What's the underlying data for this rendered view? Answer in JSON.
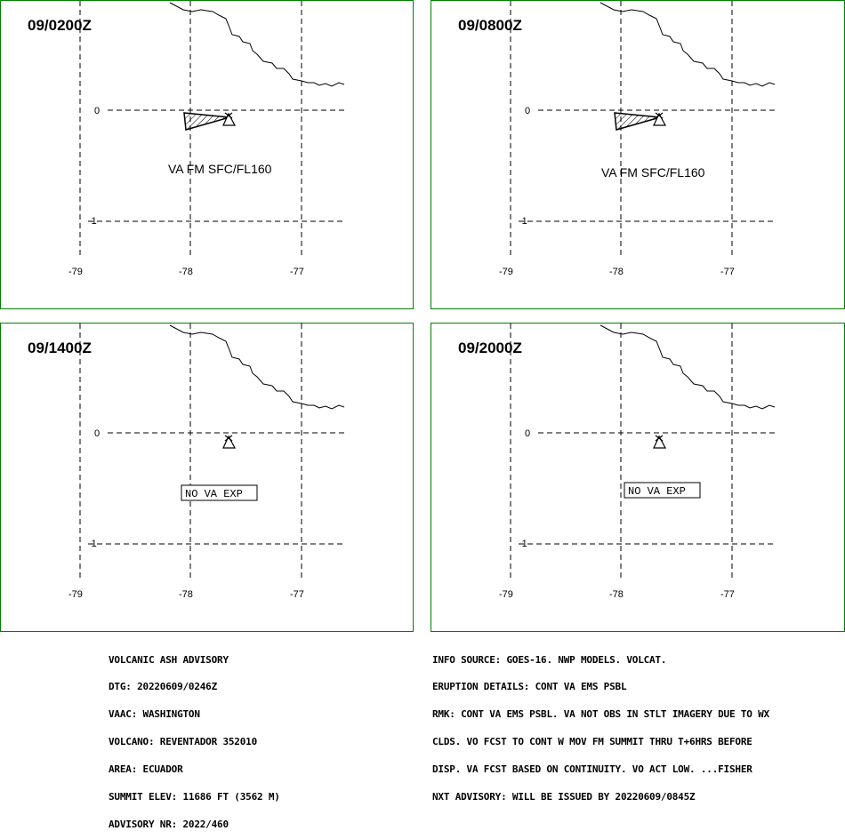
{
  "panels": [
    {
      "time": "09/0200Z",
      "ash": true,
      "text": "VA FM SFC/FL160"
    },
    {
      "time": "09/0800Z",
      "ash": true,
      "text": "VA FM SFC/FL160"
    },
    {
      "time": "09/1400Z",
      "ash": false,
      "text": "NO VA EXP"
    },
    {
      "time": "09/2000Z",
      "ash": false,
      "text": "NO VA EXP"
    }
  ],
  "axes": {
    "lon_labels": [
      "-79",
      "-78",
      "-77"
    ],
    "lat_labels": [
      "0",
      "-1"
    ]
  },
  "colors": {
    "border": "#008000",
    "grid": "#000000"
  },
  "left_info": [
    "VOLCANIC ASH ADVISORY",
    "DTG: 20220609/0246Z",
    "VAAC: WASHINGTON",
    "VOLCANO: REVENTADOR 352010",
    "AREA: ECUADOR",
    "SUMMIT ELEV: 11686 FT (3562 M)",
    "ADVISORY NR: 2022/460"
  ],
  "right_info": [
    "INFO SOURCE: GOES-16. NWP MODELS. VOLCAT.",
    "ERUPTION DETAILS: CONT VA EMS PSBL",
    "RMK: CONT VA EMS PSBL. VA NOT OBS IN STLT IMAGERY DUE TO WX",
    "CLDS. VO FCST TO CONT W MOV FM SUMMIT THRU T+6HRS BEFORE",
    "DISP. VA FCST BASED ON CONTINUITY. VO ACT LOW. ...FISHER",
    "NXT ADVISORY: WILL BE ISSUED BY 20220609/0845Z"
  ]
}
